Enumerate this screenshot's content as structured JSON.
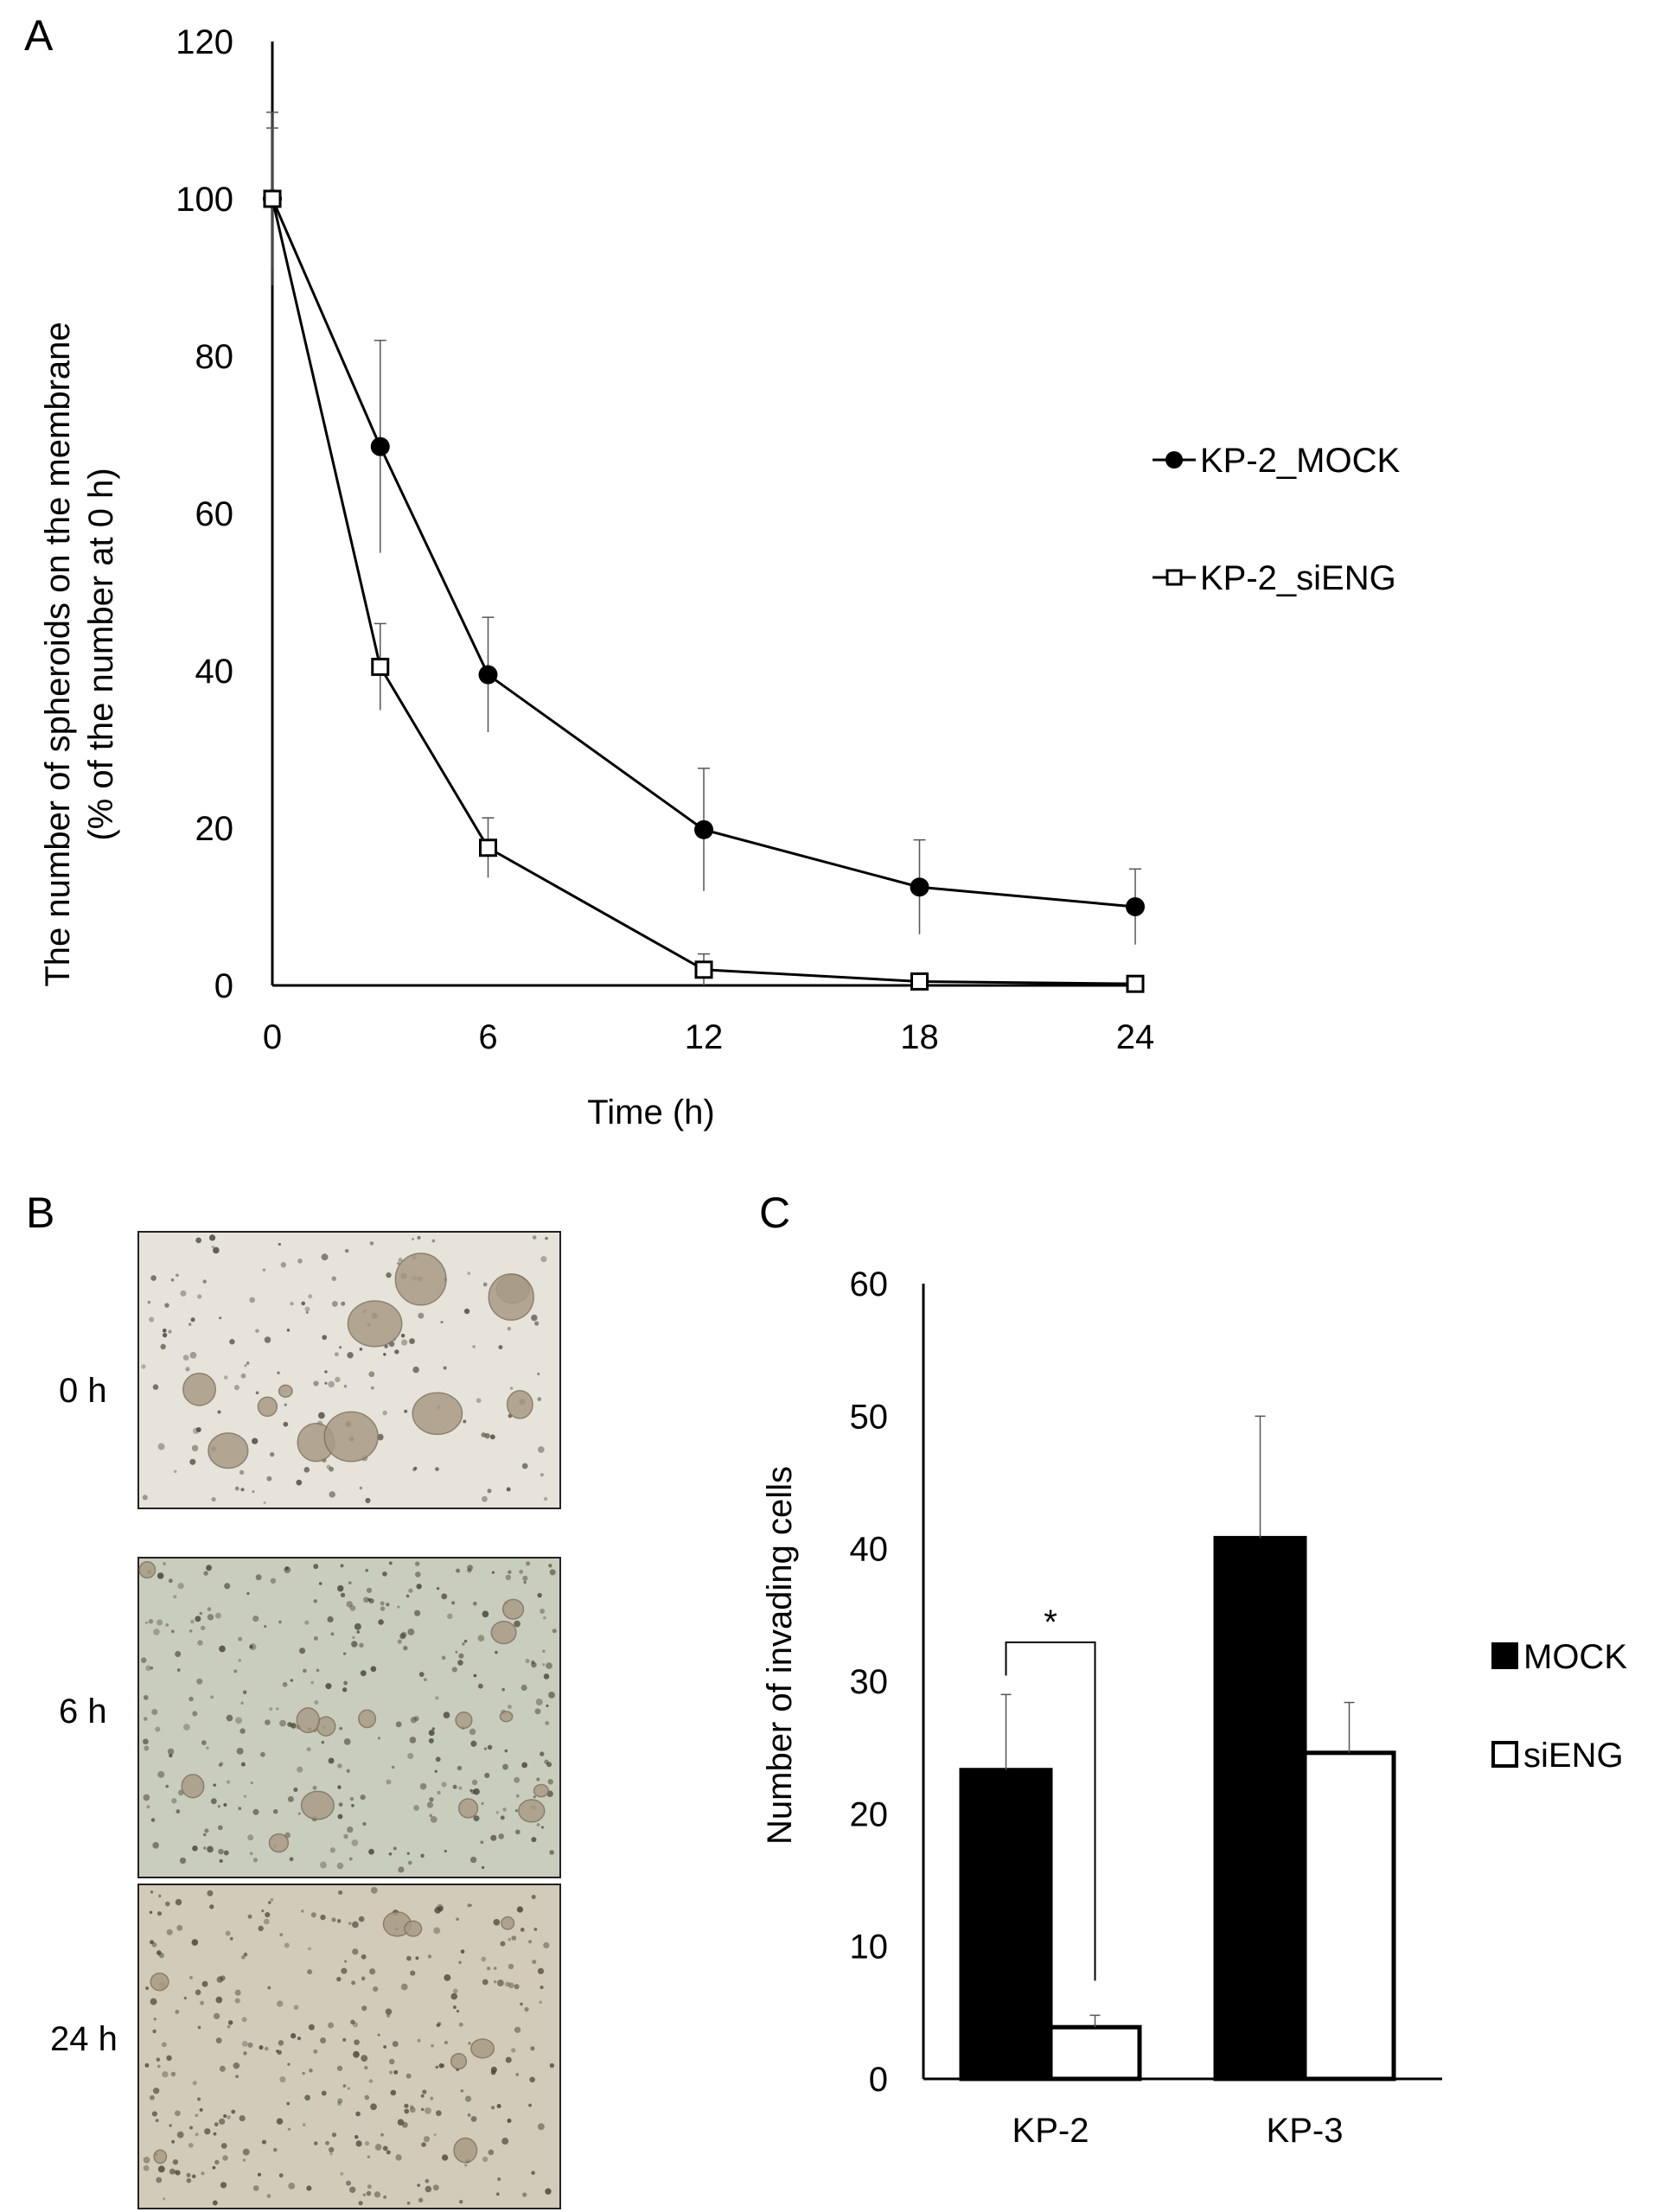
{
  "panels": {
    "a_label": "A",
    "b_label": "B",
    "c_label": "C"
  },
  "panel_b": {
    "rows": [
      {
        "label": "0 h",
        "tone": "#e6e3da",
        "spheroids": "many"
      },
      {
        "label": "6 h",
        "tone": "#c9cdbd",
        "spheroids": "few"
      },
      {
        "label": "24 h",
        "tone": "#d2cbb9",
        "spheroids": "none"
      }
    ],
    "colors": {
      "spheroid": "#a99c86",
      "cell": "#4a4538"
    }
  },
  "chart_data": [
    {
      "type": "line",
      "panel": "A",
      "title": "",
      "xlabel": "Time (h)",
      "ylabel_lines": [
        "The number of spheroids on the membrane",
        "(% of the number at 0 h)"
      ],
      "xlim": [
        0,
        24
      ],
      "ylim": [
        0,
        120
      ],
      "xticks": [
        0,
        6,
        12,
        18,
        24
      ],
      "yticks": [
        0,
        20,
        40,
        60,
        80,
        100,
        120
      ],
      "grid": false,
      "legend_position": "right",
      "series": [
        {
          "name": "KP-2_MOCK",
          "marker": "filled-circle",
          "x": [
            0,
            3,
            6,
            12,
            18,
            24
          ],
          "y": [
            100,
            68.5,
            39.5,
            19.8,
            12.5,
            10
          ],
          "err": [
            11,
            13.5,
            7.3,
            7.8,
            6,
            4.8
          ]
        },
        {
          "name": "KP-2_siENG",
          "marker": "open-square",
          "x": [
            0,
            3,
            6,
            12,
            18,
            24
          ],
          "y": [
            100,
            40.5,
            17.5,
            2,
            0.5,
            0.2
          ],
          "err": [
            9,
            5.5,
            3.8,
            2,
            0.8,
            0.5
          ]
        }
      ]
    },
    {
      "type": "bar",
      "panel": "C",
      "title": "",
      "xlabel": "",
      "ylabel": "Number of invading cells",
      "categories": [
        "KP-2",
        "KP-3"
      ],
      "ylim": [
        0,
        60
      ],
      "yticks": [
        0,
        10,
        20,
        30,
        40,
        50,
        60
      ],
      "grid": false,
      "legend_position": "right",
      "series": [
        {
          "name": "MOCK",
          "fill": "#000000",
          "values": [
            23.3,
            40.8
          ],
          "err": [
            5.7,
            9.2
          ]
        },
        {
          "name": "siENG",
          "fill": "#ffffff",
          "values": [
            3.9,
            24.6
          ],
          "err": [
            0.9,
            3.8
          ]
        }
      ],
      "annotation": {
        "text": "*",
        "between": [
          "MOCK",
          "siENG"
        ],
        "category": "KP-2"
      }
    }
  ]
}
